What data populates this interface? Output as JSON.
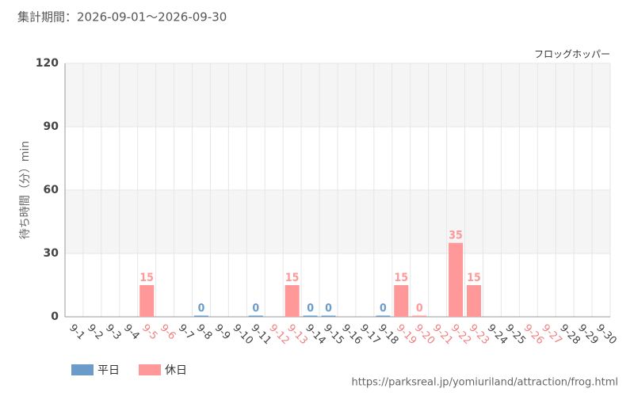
{
  "chart_data": {
    "type": "bar",
    "title": "集計期間：2026-09-01～2026-09-30",
    "subtitle": "フロッグホッパー",
    "y_label": "待ち時間（分）min",
    "source": "https://parksreal.jp/yomiuriland/attraction/frog.html",
    "categories": [
      "9-1",
      "9-2",
      "9-3",
      "9-4",
      "9-5",
      "9-6",
      "9-7",
      "9-8",
      "9-9",
      "9-10",
      "9-11",
      "9-12",
      "9-13",
      "9-14",
      "9-15",
      "9-16",
      "9-17",
      "9-18",
      "9-19",
      "9-20",
      "9-21",
      "9-22",
      "9-23",
      "9-24",
      "9-25",
      "9-26",
      "9-27",
      "9-28",
      "9-29",
      "9-30"
    ],
    "category_label_colors": [
      "#444",
      "#444",
      "#444",
      "#444",
      "#f08080",
      "#f08080",
      "#444",
      "#444",
      "#444",
      "#444",
      "#444",
      "#f08080",
      "#f08080",
      "#444",
      "#444",
      "#444",
      "#444",
      "#444",
      "#f08080",
      "#f08080",
      "#f08080",
      "#f08080",
      "#f08080",
      "#444",
      "#444",
      "#f08080",
      "#f08080",
      "#444",
      "#444",
      "#444"
    ],
    "series": [
      {
        "name": "平日",
        "color": "#6b9bc8",
        "values": [
          null,
          null,
          null,
          null,
          null,
          null,
          null,
          0,
          null,
          null,
          0,
          null,
          null,
          0,
          0,
          null,
          null,
          0,
          null,
          null,
          null,
          null,
          null,
          null,
          null,
          null,
          null,
          null,
          null,
          null
        ]
      },
      {
        "name": "休日",
        "color": "#ff9999",
        "values": [
          null,
          null,
          null,
          null,
          15,
          null,
          null,
          null,
          null,
          null,
          null,
          null,
          15,
          null,
          null,
          null,
          null,
          null,
          15,
          0,
          null,
          35,
          15,
          null,
          null,
          null,
          null,
          null,
          null,
          null
        ]
      }
    ],
    "ylim": [
      0,
      120
    ],
    "yticks": [
      0,
      30,
      60,
      90,
      120
    ],
    "grid": true
  }
}
